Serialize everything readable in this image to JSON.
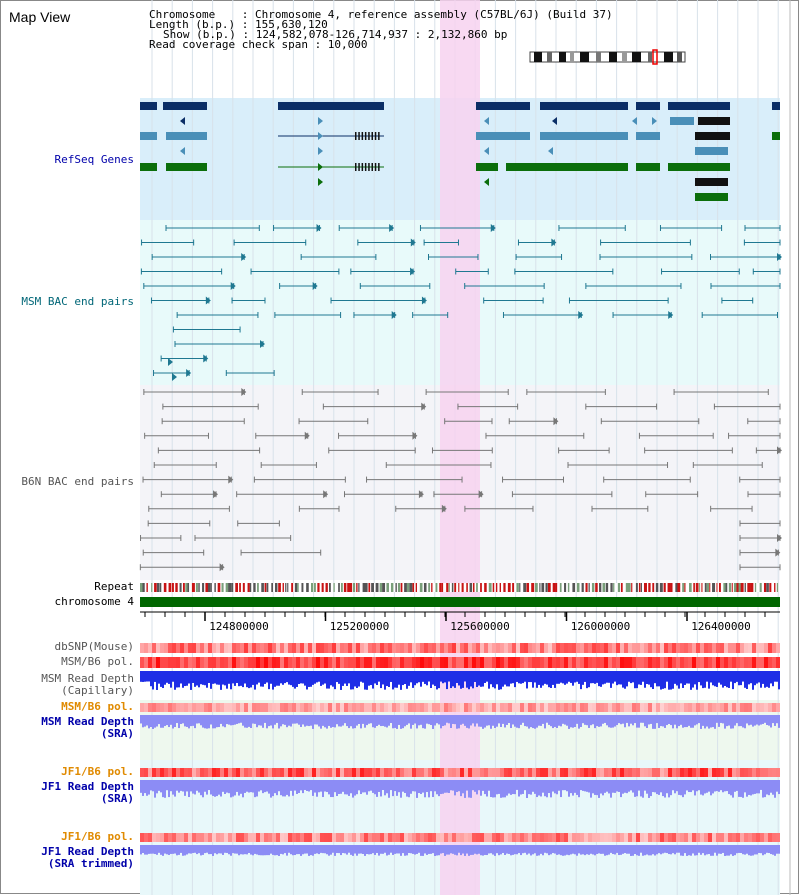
{
  "title": "Map View",
  "info": {
    "chromosome": "Chromosome    : Chromosome 4, reference assembly (C57BL/6J) (Build 37)",
    "length": "Length (b.p.) : 155,630,120",
    "show": "Show (b.p.) : 124,582,078-126,714,937 : 2,132,860 bp",
    "coverage": "Read coverage check span : 10,000"
  },
  "tracks": {
    "refseq": "RefSeq Genes",
    "msm_bac": "MSM BAC end pairs",
    "b6n_bac": "B6N BAC end pairs",
    "repeat": "Repeat",
    "chromosome": "chromosome 4",
    "dbsnp": "dbSNP(Mouse)",
    "msm_pol": "MSM/B6 pol.",
    "msm_depth_cap_1": "MSM Read Depth",
    "msm_depth_cap_2": "(Capillary)",
    "msm_pol2": "MSM/B6 pol.",
    "msm_depth_sra_1": "MSM Read Depth",
    "msm_depth_sra_2": "(SRA)",
    "jf1_pol": "JF1/B6 pol.",
    "jf1_depth_1": "JF1 Read Depth",
    "jf1_depth_2": "(SRA)",
    "jf1_pol2": "JF1/B6 pol.",
    "jf1_trim_1": "JF1 Read Depth",
    "jf1_trim_2": "(SRA trimmed)"
  },
  "axis": {
    "ticks": [
      "124800000",
      "125200000",
      "125600000",
      "126000000",
      "126400000"
    ]
  },
  "colors": {
    "refseq_bg": "#d9eefa",
    "msm_bg": "#e8fafa",
    "b6n_bg": "#f4f4f8",
    "highlight": "#f7d2f0",
    "chromosome": "#006600",
    "gene_dark": "#0b2e66",
    "gene_mid": "#4a8fb8",
    "gene_green": "#0b6e0b",
    "bac_msm": "#1f7891",
    "bac_b6n": "#777777",
    "depth_cap": "#1f2ee6",
    "depth_sra": "#8c8cf5",
    "label_blue": "#0000aa",
    "label_teal": "#006677",
    "label_gray": "#555555",
    "label_orange": "#e08a00"
  }
}
